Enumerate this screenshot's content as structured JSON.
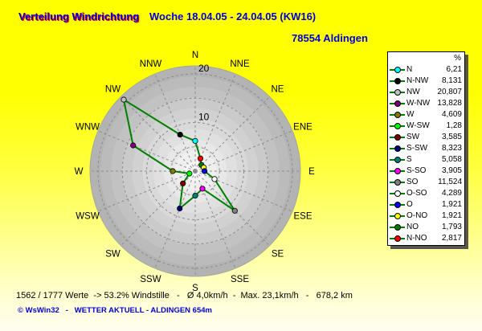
{
  "header": {
    "title": "Verteilung Windrichtung",
    "period": "Woche 18.04.05 - 24.04.05 (KW16)",
    "station": "78554 Aldingen",
    "title_color": "#0000e0",
    "title_shadow_color": "#ff0000"
  },
  "legend": {
    "header_percent": "%",
    "line_color": "#008000",
    "rows": [
      {
        "label": "N",
        "value": "6,21",
        "color": "#00FFFF"
      },
      {
        "label": "N-NW",
        "value": "8,131",
        "color": "#000000"
      },
      {
        "label": "NW",
        "value": "20,807",
        "color": "#C0C0C0"
      },
      {
        "label": "W-NW",
        "value": "13,828",
        "color": "#800080"
      },
      {
        "label": "W",
        "value": "4,609",
        "color": "#808000"
      },
      {
        "label": "W-SW",
        "value": "1,28",
        "color": "#00FF00"
      },
      {
        "label": "SW",
        "value": "3,585",
        "color": "#800000"
      },
      {
        "label": "S-SW",
        "value": "8,323",
        "color": "#000080"
      },
      {
        "label": "S",
        "value": "5,058",
        "color": "#008080"
      },
      {
        "label": "S-SO",
        "value": "3,905",
        "color": "#FF00FF"
      },
      {
        "label": "SO",
        "value": "11,524",
        "color": "#808080"
      },
      {
        "label": "O-SO",
        "value": "4,289",
        "color": "#FFFFFF"
      },
      {
        "label": "O",
        "value": "1,921",
        "color": "#0000FF"
      },
      {
        "label": "O-NO",
        "value": "1,921",
        "color": "#FFFF00"
      },
      {
        "label": "NO",
        "value": "1,793",
        "color": "#008000"
      },
      {
        "label": "N-NO",
        "value": "2,817",
        "color": "#FF0000"
      }
    ]
  },
  "chart_data": {
    "type": "radar",
    "title": "Verteilung Windrichtung",
    "unit": "%",
    "direction_labels": [
      "N",
      "NNE",
      "NE",
      "ENE",
      "E",
      "ESE",
      "SE",
      "SSE",
      "S",
      "SSW",
      "SW",
      "WSW",
      "W",
      "WNW",
      "NW",
      "NNW"
    ],
    "series": [
      {
        "name": "Windrichtung %",
        "values": [
          6.21,
          2.817,
          1.793,
          1.921,
          1.921,
          4.289,
          11.524,
          3.905,
          5.058,
          8.323,
          3.585,
          1.28,
          4.609,
          13.828,
          20.807,
          8.131
        ],
        "marker_colors": [
          "#00FFFF",
          "#FF0000",
          "#008000",
          "#FFFF00",
          "#0000FF",
          "#FFFFFF",
          "#808080",
          "#FF00FF",
          "#008080",
          "#000080",
          "#800000",
          "#00FF00",
          "#808000",
          "#800080",
          "#C0C0C0",
          "#000000"
        ]
      }
    ],
    "r_ticks": [
      10,
      20
    ],
    "r_max": 21.65,
    "grid": true,
    "grid_tick_step": 5,
    "legend_position": "right",
    "line_color": "#008000"
  },
  "footer": {
    "stats": "1562 / 1777 Werte  -> 53.2% Windstille   -   Ø 4,0km/h  -  Max. 23,1km/h   -   678,2 km",
    "copyright": "© WsWin32   -   WETTER AKTUELL - ALDINGEN 654m"
  }
}
